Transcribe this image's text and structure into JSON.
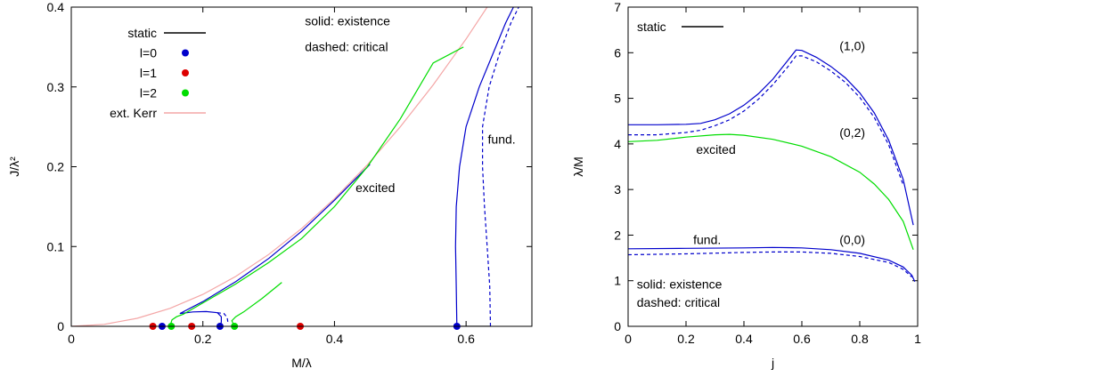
{
  "colors": {
    "blue": "#0000cc",
    "red": "#dd0000",
    "green": "#00dd00",
    "pink": "#f4a6a6",
    "black": "#000000"
  },
  "chart_data": [
    {
      "type": "line",
      "xlabel": "M/λ",
      "ylabel": "J/λ²",
      "xlim": [
        0,
        0.7
      ],
      "ylim": [
        0,
        0.4
      ],
      "xticks": [
        0,
        0.2,
        0.4,
        0.6
      ],
      "xtick_labels": [
        "0",
        "0.2",
        "0.4",
        "0.6"
      ],
      "yticks": [
        0,
        0.1,
        0.2,
        0.3,
        0.4
      ],
      "ytick_labels": [
        "0",
        "0.1",
        "0.2",
        "0.3",
        "0.4"
      ],
      "legend": [
        {
          "label": "static",
          "color": "#000000",
          "kind": "line"
        },
        {
          "label": "l=0",
          "color": "#0000cc",
          "kind": "dot"
        },
        {
          "label": "l=1",
          "color": "#dd0000",
          "kind": "dot"
        },
        {
          "label": "l=2",
          "color": "#00dd00",
          "kind": "dot"
        },
        {
          "label": "ext. Kerr",
          "color": "#f4a6a6",
          "kind": "line"
        }
      ],
      "annotations": [
        {
          "text": "solid:  existence",
          "x": 0.355,
          "y": 0.377
        },
        {
          "text": "dashed: critical",
          "x": 0.355,
          "y": 0.345
        },
        {
          "text": "excited",
          "x": 0.432,
          "y": 0.168
        },
        {
          "text": "fund.",
          "x": 0.633,
          "y": 0.229
        }
      ],
      "series": [
        {
          "color": "#f4a6a6",
          "dash": false,
          "points": [
            [
              0,
              0
            ],
            [
              0.05,
              0.0025
            ],
            [
              0.1,
              0.01
            ],
            [
              0.15,
              0.0225
            ],
            [
              0.2,
              0.04
            ],
            [
              0.25,
              0.0625
            ],
            [
              0.3,
              0.09
            ],
            [
              0.35,
              0.1225
            ],
            [
              0.4,
              0.16
            ],
            [
              0.45,
              0.2025
            ],
            [
              0.5,
              0.25
            ],
            [
              0.55,
              0.3025
            ],
            [
              0.6,
              0.36
            ],
            [
              0.632,
              0.4
            ]
          ]
        },
        {
          "color": "#0000cc",
          "dash": false,
          "points": [
            [
              0.165,
              0.016
            ],
            [
              0.2,
              0.031
            ],
            [
              0.25,
              0.056
            ],
            [
              0.3,
              0.085
            ],
            [
              0.35,
              0.119
            ],
            [
              0.4,
              0.158
            ],
            [
              0.454,
              0.203
            ]
          ]
        },
        {
          "color": "#0000cc",
          "dash": false,
          "points": [
            [
              0.165,
              0.016
            ],
            [
              0.185,
              0.018
            ],
            [
              0.205,
              0.0185
            ],
            [
              0.222,
              0.017
            ],
            [
              0.228,
              0.012
            ],
            [
              0.228,
              0.006
            ],
            [
              0.227,
              0
            ]
          ]
        },
        {
          "color": "#0000cc",
          "dash": true,
          "points": [
            [
              0.222,
              0.017
            ],
            [
              0.232,
              0.016
            ],
            [
              0.237,
              0.011
            ],
            [
              0.238,
              0.005
            ]
          ]
        },
        {
          "color": "#00dd00",
          "dash": false,
          "points": [
            [
              0.15,
              0
            ],
            [
              0.153,
              0.008
            ],
            [
              0.16,
              0.012
            ],
            [
              0.17,
              0.015
            ],
            [
              0.25,
              0.053
            ],
            [
              0.3,
              0.08
            ],
            [
              0.35,
              0.11
            ],
            [
              0.4,
              0.15
            ],
            [
              0.45,
              0.2
            ],
            [
              0.5,
              0.26
            ],
            [
              0.55,
              0.33
            ],
            [
              0.596,
              0.35
            ]
          ]
        },
        {
          "color": "#00dd00",
          "dash": false,
          "points": [
            [
              0.248,
              0
            ],
            [
              0.244,
              0.007
            ],
            [
              0.25,
              0.012
            ],
            [
              0.262,
              0.018
            ],
            [
              0.29,
              0.035
            ],
            [
              0.32,
              0.055
            ]
          ]
        },
        {
          "color": "#0000cc",
          "dash": false,
          "points": [
            [
              0.586,
              0
            ],
            [
              0.585,
              0.05
            ],
            [
              0.584,
              0.1
            ],
            [
              0.585,
              0.15
            ],
            [
              0.59,
              0.2
            ],
            [
              0.6,
              0.25
            ],
            [
              0.62,
              0.3
            ],
            [
              0.64,
              0.34
            ],
            [
              0.66,
              0.38
            ],
            [
              0.672,
              0.4
            ]
          ]
        },
        {
          "color": "#0000cc",
          "dash": true,
          "points": [
            [
              0.637,
              0
            ],
            [
              0.636,
              0.05
            ],
            [
              0.632,
              0.1
            ],
            [
              0.628,
              0.15
            ],
            [
              0.625,
              0.2
            ],
            [
              0.625,
              0.25
            ],
            [
              0.635,
              0.3
            ],
            [
              0.65,
              0.34
            ],
            [
              0.668,
              0.38
            ],
            [
              0.68,
              0.4
            ]
          ]
        },
        {
          "color": "#000000",
          "dash": false,
          "points": [
            [
              0.586,
              0
            ],
            [
              0.637,
              0
            ]
          ]
        }
      ],
      "points": [
        {
          "x": 0.124,
          "y": 0,
          "color": "#dd0000"
        },
        {
          "x": 0.138,
          "y": 0,
          "color": "#0000cc"
        },
        {
          "x": 0.152,
          "y": 0,
          "color": "#00dd00"
        },
        {
          "x": 0.183,
          "y": 0,
          "color": "#dd0000"
        },
        {
          "x": 0.226,
          "y": 0,
          "color": "#0000cc"
        },
        {
          "x": 0.248,
          "y": 0,
          "color": "#00dd00"
        },
        {
          "x": 0.348,
          "y": 0,
          "color": "#dd0000"
        },
        {
          "x": 0.586,
          "y": 0,
          "color": "#0000cc"
        }
      ]
    },
    {
      "type": "line",
      "xlabel": "j",
      "ylabel": "λ/M",
      "xlim": [
        0,
        1
      ],
      "ylim": [
        0,
        7
      ],
      "xticks": [
        0,
        0.2,
        0.4,
        0.6,
        0.8,
        1
      ],
      "xtick_labels": [
        "0",
        "0.2",
        "0.4",
        "0.6",
        "0.8",
        "1"
      ],
      "yticks": [
        0,
        1,
        2,
        3,
        4,
        5,
        6,
        7
      ],
      "ytick_labels": [
        "0",
        "1",
        "2",
        "3",
        "4",
        "5",
        "6",
        "7"
      ],
      "legend": [
        {
          "label": "static",
          "color": "#000000",
          "kind": "line"
        }
      ],
      "annotations": [
        {
          "text": "(1,0)",
          "x": 0.73,
          "y": 6.05
        },
        {
          "text": "(0,2)",
          "x": 0.73,
          "y": 4.15
        },
        {
          "text": "excited",
          "x": 0.235,
          "y": 3.78
        },
        {
          "text": "fund.",
          "x": 0.225,
          "y": 1.8
        },
        {
          "text": "(0,0)",
          "x": 0.73,
          "y": 1.8
        },
        {
          "text": "solid:  existence",
          "x": 0.03,
          "y": 0.83
        },
        {
          "text": "dashed: critical",
          "x": 0.03,
          "y": 0.43
        }
      ],
      "series": [
        {
          "color": "#0000cc",
          "dash": false,
          "points": [
            [
              0,
              4.42
            ],
            [
              0.1,
              4.42
            ],
            [
              0.2,
              4.43
            ],
            [
              0.25,
              4.45
            ],
            [
              0.3,
              4.53
            ],
            [
              0.35,
              4.66
            ],
            [
              0.4,
              4.85
            ],
            [
              0.45,
              5.1
            ],
            [
              0.5,
              5.42
            ],
            [
              0.55,
              5.82
            ],
            [
              0.58,
              6.06
            ],
            [
              0.6,
              6.05
            ],
            [
              0.65,
              5.9
            ],
            [
              0.7,
              5.7
            ],
            [
              0.75,
              5.45
            ],
            [
              0.8,
              5.12
            ],
            [
              0.85,
              4.68
            ],
            [
              0.9,
              4.08
            ],
            [
              0.95,
              3.22
            ],
            [
              0.985,
              2.22
            ]
          ]
        },
        {
          "color": "#0000cc",
          "dash": true,
          "points": [
            [
              0,
              4.2
            ],
            [
              0.1,
              4.2
            ],
            [
              0.2,
              4.25
            ],
            [
              0.25,
              4.3
            ],
            [
              0.3,
              4.4
            ],
            [
              0.35,
              4.53
            ],
            [
              0.4,
              4.72
            ],
            [
              0.45,
              4.98
            ],
            [
              0.5,
              5.3
            ],
            [
              0.55,
              5.68
            ],
            [
              0.58,
              5.93
            ],
            [
              0.6,
              5.93
            ],
            [
              0.65,
              5.8
            ],
            [
              0.7,
              5.6
            ],
            [
              0.75,
              5.35
            ],
            [
              0.8,
              5.02
            ],
            [
              0.85,
              4.58
            ],
            [
              0.9,
              3.98
            ],
            [
              0.95,
              3.1
            ]
          ]
        },
        {
          "color": "#00dd00",
          "dash": false,
          "points": [
            [
              0,
              4.05
            ],
            [
              0.1,
              4.08
            ],
            [
              0.2,
              4.15
            ],
            [
              0.3,
              4.2
            ],
            [
              0.35,
              4.21
            ],
            [
              0.4,
              4.19
            ],
            [
              0.5,
              4.1
            ],
            [
              0.6,
              3.95
            ],
            [
              0.7,
              3.72
            ],
            [
              0.8,
              3.38
            ],
            [
              0.85,
              3.12
            ],
            [
              0.9,
              2.78
            ],
            [
              0.95,
              2.3
            ],
            [
              0.985,
              1.68
            ]
          ]
        },
        {
          "color": "#0000cc",
          "dash": false,
          "points": [
            [
              0,
              1.7
            ],
            [
              0.2,
              1.71
            ],
            [
              0.4,
              1.72
            ],
            [
              0.5,
              1.73
            ],
            [
              0.6,
              1.72
            ],
            [
              0.7,
              1.68
            ],
            [
              0.8,
              1.6
            ],
            [
              0.9,
              1.45
            ],
            [
              0.95,
              1.3
            ],
            [
              0.98,
              1.12
            ],
            [
              0.99,
              0.98
            ]
          ]
        },
        {
          "color": "#0000cc",
          "dash": true,
          "points": [
            [
              0,
              1.57
            ],
            [
              0.2,
              1.59
            ],
            [
              0.4,
              1.62
            ],
            [
              0.5,
              1.63
            ],
            [
              0.6,
              1.63
            ],
            [
              0.7,
              1.6
            ],
            [
              0.8,
              1.53
            ],
            [
              0.9,
              1.4
            ],
            [
              0.95,
              1.25
            ],
            [
              0.98,
              1.08
            ]
          ]
        }
      ]
    }
  ]
}
